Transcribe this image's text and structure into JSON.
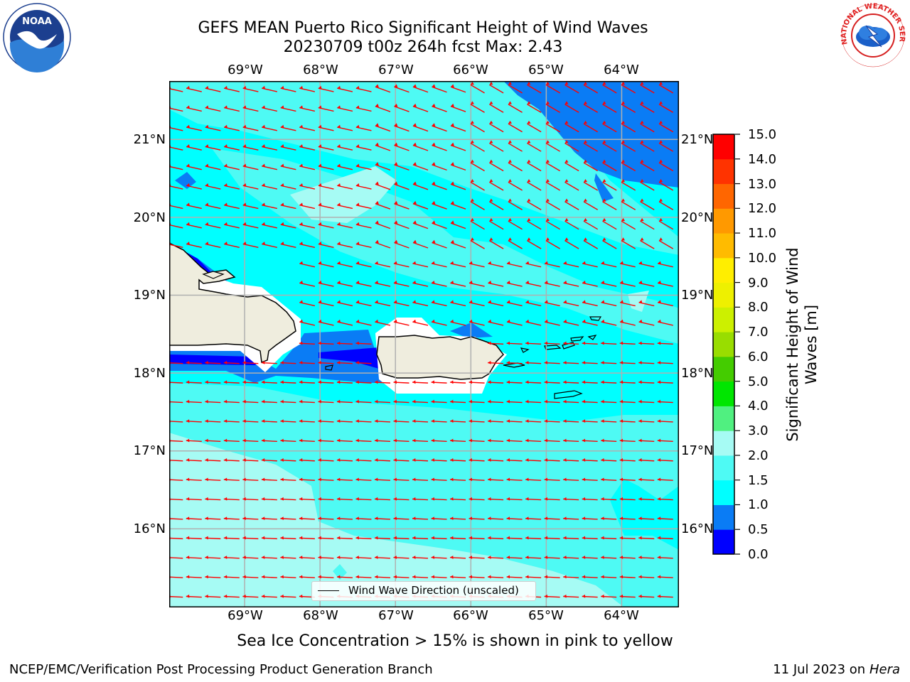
{
  "title": {
    "line1": "GEFS MEAN Puerto Rico Significant Height of Wind Waves",
    "line2": "20230709 t00z 264h fcst   Max: 2.43"
  },
  "map": {
    "lon_labels": [
      "69°W",
      "68°W",
      "67°W",
      "66°W",
      "65°W",
      "64°W"
    ],
    "lat_labels": [
      "21°N",
      "20°N",
      "19°N",
      "18°N",
      "17°N",
      "16°N"
    ],
    "lon_range": [
      -70.0,
      -63.25
    ],
    "lat_range": [
      15.0,
      21.75
    ],
    "legend_label": "Wind Wave Direction (unscaled)",
    "vector_color": "#ff0000",
    "land_color": "#efedde",
    "grid_color": "#b0b0b0"
  },
  "colorbar": {
    "label": "Significant Height of Wind Waves [m]",
    "tick_labels": [
      "15.0",
      "14.0",
      "13.0",
      "12.0",
      "11.0",
      "10.0",
      "9.0",
      "8.0",
      "7.0",
      "6.0",
      "5.0",
      "4.0",
      "3.0",
      "2.0",
      "1.5",
      "1.0",
      "0.5",
      "0.0"
    ],
    "bands": [
      {
        "from": 0.0,
        "to": 0.5,
        "color": "#0000ff"
      },
      {
        "from": 0.5,
        "to": 1.0,
        "color": "#0a7cf5"
      },
      {
        "from": 1.0,
        "to": 1.5,
        "color": "#00ffff"
      },
      {
        "from": 1.5,
        "to": 2.0,
        "color": "#4efaf4"
      },
      {
        "from": 2.0,
        "to": 3.0,
        "color": "#a6fbf4"
      },
      {
        "from": 3.0,
        "to": 4.0,
        "color": "#50f080"
      },
      {
        "from": 4.0,
        "to": 5.0,
        "color": "#00e600"
      },
      {
        "from": 5.0,
        "to": 6.0,
        "color": "#44cc00"
      },
      {
        "from": 6.0,
        "to": 7.0,
        "color": "#99dd00"
      },
      {
        "from": 7.0,
        "to": 8.0,
        "color": "#ccf000"
      },
      {
        "from": 8.0,
        "to": 9.0,
        "color": "#eef000"
      },
      {
        "from": 9.0,
        "to": 10.0,
        "color": "#ffee00"
      },
      {
        "from": 10.0,
        "to": 11.0,
        "color": "#ffbb00"
      },
      {
        "from": 11.0,
        "to": 12.0,
        "color": "#ff9900"
      },
      {
        "from": 12.0,
        "to": 13.0,
        "color": "#ff6600"
      },
      {
        "from": 13.0,
        "to": 14.0,
        "color": "#ff3300"
      },
      {
        "from": 14.0,
        "to": 15.0,
        "color": "#ff0000"
      }
    ]
  },
  "caption": "Sea Ice Concentration > 15% is shown in pink to yellow",
  "footer": {
    "left": "NCEP/EMC/Verification Post Processing Product Generation Branch",
    "right_prefix": "11 Jul 2023 on ",
    "right_host": "Hera"
  },
  "logos": {
    "noaa_text": "NOAA",
    "nws_text": "NATIONAL WEATHER SERVICE"
  }
}
